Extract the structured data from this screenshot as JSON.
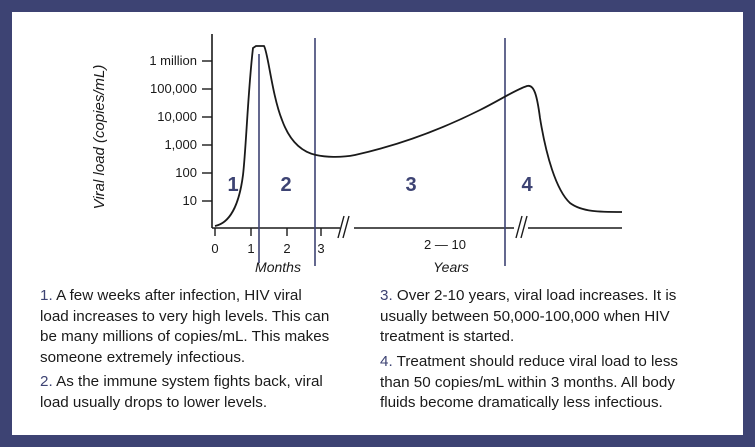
{
  "colors": {
    "frame": "#3d4373",
    "phase_line": "#3d4373",
    "curve": "#1a1a1a"
  },
  "chart_data": {
    "type": "line",
    "ylabel": "Viral load (copies/mL)",
    "y_scale": "log",
    "y_ticks": [
      "10",
      "100",
      "1,000",
      "10,000",
      "100,000",
      "1 million"
    ],
    "x_ticks_months": [
      "0",
      "1",
      "2",
      "3"
    ],
    "x_label_months": "Months",
    "x_range_years": "2 — 10",
    "x_label_years": "Years",
    "phase_labels": [
      "1",
      "2",
      "3",
      "4"
    ],
    "series": [
      {
        "points": [
          {
            "x": "0 months",
            "y": 1
          },
          {
            "x": "0.5 months",
            "y": 10
          },
          {
            "x": "0.8 months",
            "y": 1000
          },
          {
            "x": "1.1 months",
            "y": 1000000
          },
          {
            "x": "1.5 months",
            "y": 1000000
          },
          {
            "x": "2 months",
            "y": 5000
          },
          {
            "x": "3 months",
            "y": 400
          },
          {
            "x": "year 5",
            "y": 2000
          },
          {
            "x": "year 9",
            "y": 40000
          },
          {
            "x": "year 10",
            "y": 100000
          },
          {
            "x": "after treatment",
            "y": 10
          },
          {
            "x": "after treatment",
            "y": 5
          }
        ]
      }
    ]
  },
  "captions": [
    {
      "num": "1.",
      "lines": [
        "A few weeks after infection, HIV viral",
        "load increases to very high levels. This can",
        "be many millions of copies/mL. This makes",
        "someone extremely infectious."
      ]
    },
    {
      "num": "2.",
      "lines": [
        "As the immune system fights back, viral",
        "load usually drops to lower levels."
      ]
    },
    {
      "num": "3.",
      "lines": [
        "Over 2-10 years, viral load increases. It is",
        "usually between 50,000-100,000 when HIV",
        "treatment is started."
      ]
    },
    {
      "num": "4.",
      "lines": [
        "Treatment should reduce viral load to less",
        "than 50 copies/mL within 3 months. All body",
        "fluids become dramatically less infectious."
      ]
    }
  ]
}
